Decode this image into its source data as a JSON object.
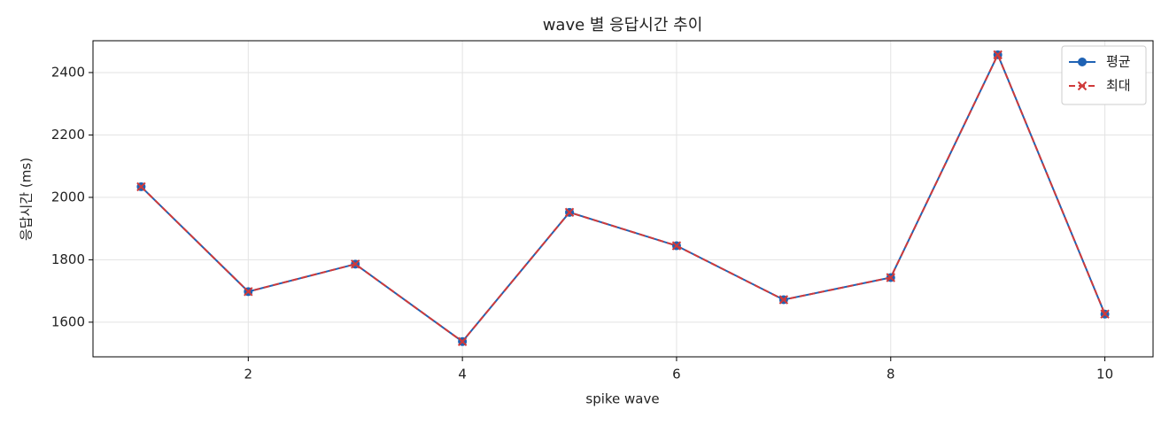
{
  "chart_data": {
    "type": "line",
    "title": "wave 별 응답시간 추이",
    "x_label": "spike wave",
    "y_label": "응답시간 (ms)",
    "x": [
      1,
      2,
      3,
      4,
      5,
      6,
      7,
      8,
      9,
      10
    ],
    "series": [
      {
        "name": "평균",
        "color": "#1f62b4",
        "linestyle": "solid",
        "marker": "circle",
        "values": [
          2034,
          1698,
          1786,
          1538,
          1952,
          1845,
          1672,
          1743,
          2457,
          1626
        ]
      },
      {
        "name": "최대",
        "color": "#d03a3a",
        "linestyle": "dashed",
        "marker": "x",
        "values": [
          2034,
          1698,
          1786,
          1538,
          1952,
          1845,
          1672,
          1743,
          2457,
          1626
        ]
      }
    ],
    "xlim": [
      0.55,
      10.45
    ],
    "xticks": [
      2,
      4,
      6,
      8,
      10
    ],
    "ylim": [
      1489,
      2502
    ],
    "yticks": [
      1600,
      1800,
      2000,
      2200,
      2400
    ],
    "grid": true,
    "legend": "upper-right"
  }
}
